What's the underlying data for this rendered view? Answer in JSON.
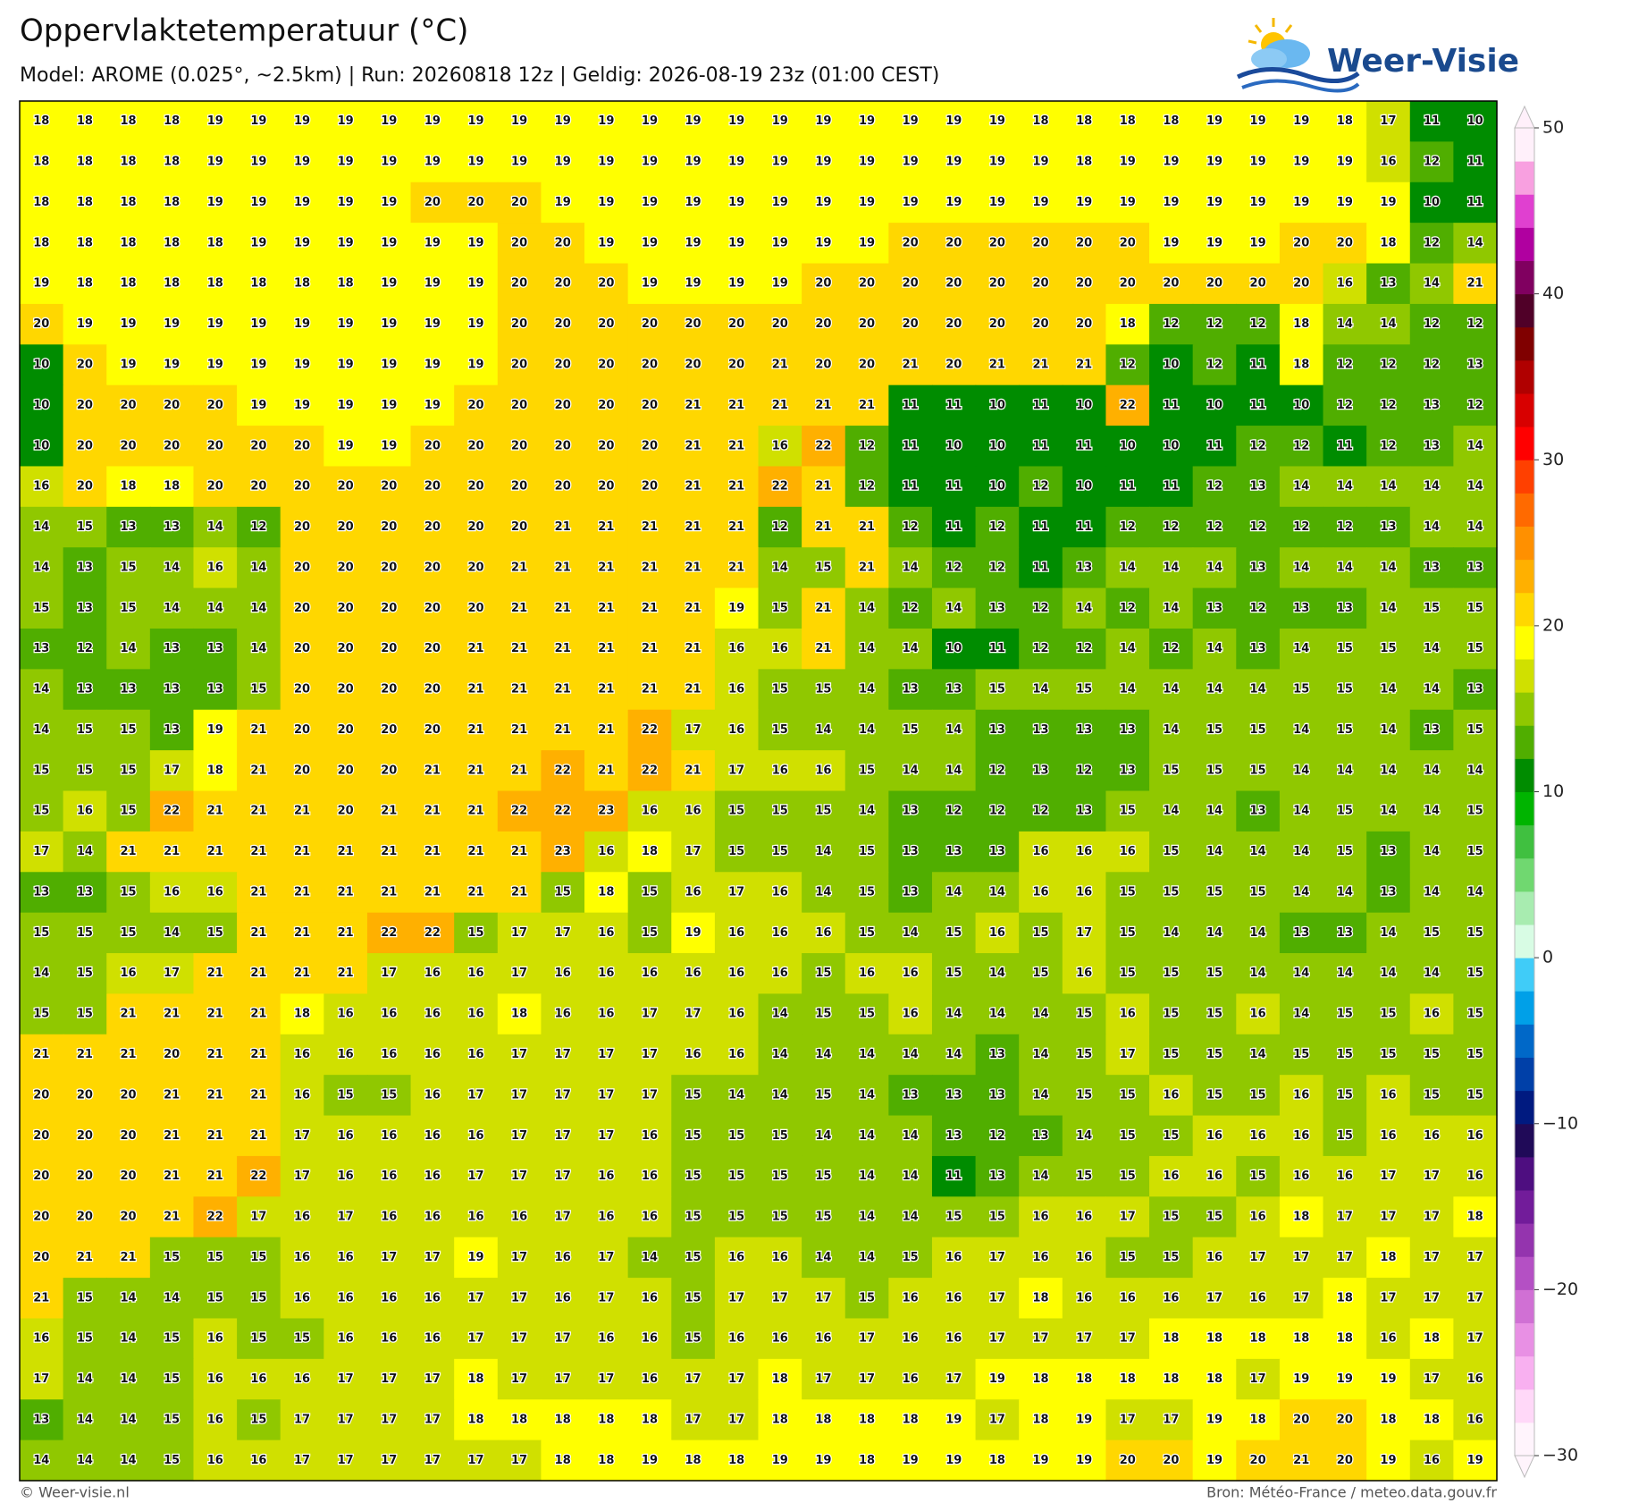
{
  "header": {
    "title": "Oppervlaktetemperatuur (°C)",
    "subtitle": "Model: AROME (0.025°, ~2.5km)  |  Run: 20260818 12z  |  Geldig: 2026-08-19 23z (01:00 CEST)",
    "logo": "Weer-Visie"
  },
  "grid": {
    "rows": [
      [
        18,
        18,
        18,
        18,
        19,
        19,
        19,
        19,
        19,
        19,
        19,
        19,
        19,
        19,
        19,
        19,
        19,
        19,
        19,
        19,
        19,
        19,
        19,
        18,
        18,
        18,
        18,
        19,
        19,
        19,
        18,
        17,
        11,
        10
      ],
      [
        18,
        18,
        18,
        18,
        19,
        19,
        19,
        19,
        19,
        19,
        19,
        19,
        19,
        19,
        19,
        19,
        19,
        19,
        19,
        19,
        19,
        19,
        19,
        19,
        18,
        19,
        19,
        19,
        19,
        19,
        19,
        16,
        12,
        11
      ],
      [
        18,
        18,
        18,
        18,
        19,
        19,
        19,
        19,
        19,
        20,
        20,
        20,
        19,
        19,
        19,
        19,
        19,
        19,
        19,
        19,
        19,
        19,
        19,
        19,
        19,
        19,
        19,
        19,
        19,
        19,
        19,
        19,
        10,
        11
      ],
      [
        18,
        18,
        18,
        18,
        18,
        19,
        19,
        19,
        19,
        19,
        19,
        20,
        20,
        19,
        19,
        19,
        19,
        19,
        19,
        19,
        20,
        20,
        20,
        20,
        20,
        20,
        19,
        19,
        19,
        20,
        20,
        18,
        12,
        14
      ],
      [
        19,
        18,
        18,
        18,
        18,
        18,
        18,
        18,
        19,
        19,
        19,
        20,
        20,
        20,
        19,
        19,
        19,
        19,
        20,
        20,
        20,
        20,
        20,
        20,
        20,
        20,
        20,
        20,
        20,
        20,
        16,
        13,
        14,
        21
      ],
      [
        20,
        19,
        19,
        19,
        19,
        19,
        19,
        19,
        19,
        19,
        19,
        20,
        20,
        20,
        20,
        20,
        20,
        20,
        20,
        20,
        20,
        20,
        20,
        20,
        20,
        18,
        12,
        12,
        12,
        18,
        14,
        14,
        12,
        12
      ],
      [
        10,
        20,
        19,
        19,
        19,
        19,
        19,
        19,
        19,
        19,
        19,
        20,
        20,
        20,
        20,
        20,
        20,
        21,
        20,
        20,
        21,
        20,
        21,
        21,
        21,
        12,
        10,
        12,
        11,
        18,
        12,
        12,
        12,
        13
      ],
      [
        10,
        20,
        20,
        20,
        20,
        19,
        19,
        19,
        19,
        19,
        20,
        20,
        20,
        20,
        20,
        21,
        21,
        21,
        21,
        21,
        11,
        11,
        10,
        11,
        10,
        22,
        11,
        10,
        11,
        10,
        12,
        12,
        13,
        12
      ],
      [
        10,
        20,
        20,
        20,
        20,
        20,
        20,
        19,
        19,
        20,
        20,
        20,
        20,
        20,
        20,
        21,
        21,
        16,
        22,
        12,
        11,
        10,
        10,
        11,
        11,
        10,
        10,
        11,
        12,
        12,
        11,
        12,
        13,
        14
      ],
      [
        16,
        20,
        18,
        18,
        20,
        20,
        20,
        20,
        20,
        20,
        20,
        20,
        20,
        20,
        20,
        21,
        21,
        22,
        21,
        12,
        11,
        11,
        10,
        12,
        10,
        11,
        11,
        12,
        13,
        14,
        14,
        14,
        14,
        14
      ],
      [
        14,
        15,
        13,
        13,
        14,
        12,
        20,
        20,
        20,
        20,
        20,
        20,
        21,
        21,
        21,
        21,
        21,
        12,
        21,
        21,
        12,
        11,
        12,
        11,
        11,
        12,
        12,
        12,
        12,
        12,
        12,
        13,
        14,
        14
      ],
      [
        14,
        13,
        15,
        14,
        16,
        14,
        20,
        20,
        20,
        20,
        20,
        21,
        21,
        21,
        21,
        21,
        21,
        14,
        15,
        21,
        14,
        12,
        12,
        11,
        13,
        14,
        14,
        14,
        13,
        14,
        14,
        14,
        13,
        13
      ],
      [
        15,
        13,
        15,
        14,
        14,
        14,
        20,
        20,
        20,
        20,
        20,
        21,
        21,
        21,
        21,
        21,
        19,
        15,
        21,
        14,
        12,
        14,
        13,
        12,
        14,
        12,
        14,
        13,
        12,
        13,
        13,
        14,
        15,
        15
      ],
      [
        13,
        12,
        14,
        13,
        13,
        14,
        20,
        20,
        20,
        20,
        21,
        21,
        21,
        21,
        21,
        21,
        16,
        16,
        21,
        14,
        14,
        10,
        11,
        12,
        12,
        14,
        12,
        14,
        13,
        14,
        15,
        15,
        14,
        15
      ],
      [
        14,
        13,
        13,
        13,
        13,
        15,
        20,
        20,
        20,
        20,
        21,
        21,
        21,
        21,
        21,
        21,
        16,
        15,
        15,
        14,
        13,
        13,
        15,
        14,
        15,
        14,
        14,
        14,
        14,
        15,
        15,
        14,
        14,
        13
      ],
      [
        14,
        15,
        15,
        13,
        19,
        21,
        20,
        20,
        20,
        20,
        21,
        21,
        21,
        21,
        22,
        17,
        16,
        15,
        14,
        14,
        15,
        14,
        13,
        13,
        13,
        13,
        14,
        15,
        15,
        14,
        15,
        14,
        13,
        15
      ],
      [
        15,
        15,
        15,
        17,
        18,
        21,
        20,
        20,
        20,
        21,
        21,
        21,
        22,
        21,
        22,
        21,
        17,
        16,
        16,
        15,
        14,
        14,
        12,
        13,
        12,
        13,
        15,
        15,
        15,
        14,
        14,
        14,
        14,
        14
      ],
      [
        15,
        16,
        15,
        22,
        21,
        21,
        21,
        20,
        21,
        21,
        21,
        22,
        22,
        23,
        16,
        16,
        15,
        15,
        15,
        14,
        13,
        12,
        12,
        12,
        13,
        15,
        14,
        14,
        13,
        14,
        15,
        14,
        14,
        15
      ],
      [
        17,
        14,
        21,
        21,
        21,
        21,
        21,
        21,
        21,
        21,
        21,
        21,
        23,
        16,
        18,
        17,
        15,
        15,
        14,
        15,
        13,
        13,
        13,
        16,
        16,
        16,
        15,
        14,
        14,
        14,
        15,
        13,
        14,
        15
      ],
      [
        13,
        13,
        15,
        16,
        16,
        21,
        21,
        21,
        21,
        21,
        21,
        21,
        15,
        18,
        15,
        16,
        17,
        16,
        14,
        15,
        13,
        14,
        14,
        16,
        16,
        15,
        15,
        15,
        15,
        14,
        14,
        13,
        14,
        14
      ],
      [
        15,
        15,
        15,
        14,
        15,
        21,
        21,
        21,
        22,
        22,
        15,
        17,
        17,
        16,
        15,
        19,
        16,
        16,
        16,
        15,
        14,
        15,
        16,
        15,
        17,
        15,
        14,
        14,
        14,
        13,
        13,
        14,
        15,
        15
      ],
      [
        14,
        15,
        16,
        17,
        21,
        21,
        21,
        21,
        17,
        16,
        16,
        17,
        16,
        16,
        16,
        16,
        16,
        16,
        15,
        16,
        16,
        15,
        14,
        15,
        16,
        15,
        15,
        15,
        14,
        14,
        14,
        14,
        14,
        15
      ],
      [
        15,
        15,
        21,
        21,
        21,
        21,
        18,
        16,
        16,
        16,
        16,
        18,
        16,
        16,
        17,
        17,
        16,
        14,
        15,
        15,
        16,
        14,
        14,
        14,
        15,
        16,
        15,
        15,
        16,
        14,
        15,
        15,
        16,
        15
      ],
      [
        21,
        21,
        21,
        20,
        21,
        21,
        16,
        16,
        16,
        16,
        16,
        17,
        17,
        17,
        17,
        16,
        16,
        14,
        14,
        14,
        14,
        14,
        13,
        14,
        15,
        17,
        15,
        15,
        14,
        15,
        15,
        15,
        15,
        15
      ],
      [
        20,
        20,
        20,
        21,
        21,
        21,
        16,
        15,
        15,
        16,
        17,
        17,
        17,
        17,
        17,
        15,
        14,
        14,
        15,
        14,
        13,
        13,
        13,
        14,
        15,
        15,
        16,
        15,
        15,
        16,
        15,
        16,
        15,
        15
      ],
      [
        20,
        20,
        20,
        21,
        21,
        21,
        17,
        16,
        16,
        16,
        16,
        17,
        17,
        17,
        16,
        15,
        15,
        15,
        14,
        14,
        14,
        13,
        12,
        13,
        14,
        15,
        15,
        16,
        16,
        16,
        15,
        16,
        16,
        16
      ],
      [
        20,
        20,
        20,
        21,
        21,
        22,
        17,
        16,
        16,
        16,
        17,
        17,
        17,
        16,
        16,
        15,
        15,
        15,
        15,
        14,
        14,
        11,
        13,
        14,
        15,
        15,
        16,
        16,
        15,
        16,
        16,
        17,
        17,
        16
      ],
      [
        20,
        20,
        20,
        21,
        22,
        17,
        16,
        17,
        16,
        16,
        16,
        16,
        17,
        16,
        16,
        15,
        15,
        15,
        15,
        14,
        14,
        15,
        15,
        16,
        16,
        17,
        15,
        15,
        16,
        18,
        17,
        17,
        17,
        18
      ],
      [
        20,
        21,
        21,
        15,
        15,
        15,
        16,
        16,
        17,
        17,
        19,
        17,
        16,
        17,
        14,
        15,
        16,
        16,
        14,
        14,
        15,
        16,
        17,
        16,
        16,
        15,
        15,
        16,
        17,
        17,
        17,
        18,
        17,
        17
      ],
      [
        21,
        15,
        14,
        14,
        15,
        15,
        16,
        16,
        16,
        16,
        17,
        17,
        16,
        17,
        16,
        15,
        17,
        17,
        17,
        15,
        16,
        16,
        17,
        18,
        16,
        16,
        16,
        17,
        16,
        17,
        18,
        17,
        17,
        17
      ],
      [
        16,
        15,
        14,
        15,
        16,
        15,
        15,
        16,
        16,
        16,
        17,
        17,
        17,
        16,
        16,
        15,
        16,
        16,
        16,
        17,
        16,
        16,
        17,
        17,
        17,
        17,
        18,
        18,
        18,
        18,
        18,
        16,
        18,
        17
      ],
      [
        17,
        14,
        14,
        15,
        16,
        16,
        16,
        17,
        17,
        17,
        18,
        17,
        17,
        17,
        16,
        17,
        17,
        18,
        17,
        17,
        16,
        17,
        19,
        18,
        18,
        18,
        18,
        18,
        17,
        19,
        19,
        19,
        17,
        16
      ],
      [
        13,
        14,
        14,
        15,
        16,
        15,
        17,
        17,
        17,
        17,
        18,
        18,
        18,
        18,
        18,
        17,
        17,
        18,
        18,
        18,
        18,
        19,
        17,
        18,
        19,
        17,
        17,
        19,
        18,
        20,
        20,
        18,
        18,
        16
      ],
      [
        14,
        14,
        14,
        15,
        16,
        16,
        17,
        17,
        17,
        17,
        17,
        17,
        18,
        18,
        19,
        18,
        18,
        19,
        19,
        18,
        19,
        19,
        18,
        19,
        19,
        20,
        20,
        19,
        20,
        21,
        20,
        19,
        16,
        19
      ]
    ]
  },
  "colorbar": {
    "lim": [
      -30,
      50
    ],
    "ticks": [
      50,
      40,
      30,
      20,
      10,
      0,
      {
        "value": -10,
        "label": "−10"
      },
      {
        "value": -20,
        "label": "−20"
      },
      {
        "value": -30,
        "label": "−30"
      }
    ],
    "colors": [
      "#fff4fc",
      "#ffd8f8",
      "#f8b0f0",
      "#e890e4",
      "#d070d4",
      "#b450c4",
      "#9434ae",
      "#721c9a",
      "#4e0e80",
      "#200a58",
      "#001a80",
      "#0040a8",
      "#0068c8",
      "#00a0e8",
      "#40ccf8",
      "#d8fce4",
      "#a8ecb0",
      "#70d870",
      "#40c040",
      "#00b400",
      "#008c00",
      "#50ae00",
      "#90c800",
      "#d0e000",
      "#ffff00",
      "#ffd700",
      "#ffb000",
      "#ff9000",
      "#ff6a00",
      "#ff4000",
      "#ff0000",
      "#d80000",
      "#b00000",
      "#800000",
      "#500028",
      "#800060",
      "#b000a0",
      "#e040d0",
      "#f8a0e0",
      "#fff0fa"
    ]
  },
  "footer": {
    "credit": "© Weer-visie.nl",
    "source": "Bron: Météo-France / meteo.data.gouv.fr"
  }
}
